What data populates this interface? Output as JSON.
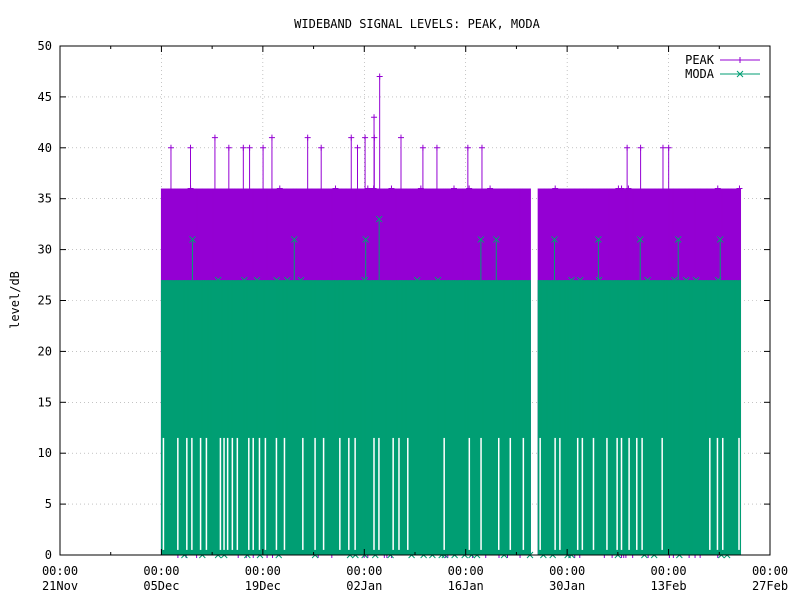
{
  "chart_data": {
    "type": "line",
    "title": "WIDEBAND SIGNAL LEVELS: PEAK, MODA",
    "xlabel": "",
    "ylabel": "level/dB",
    "ylim": [
      0,
      50
    ],
    "yticks": [
      0,
      5,
      10,
      15,
      20,
      25,
      30,
      35,
      40,
      45,
      50
    ],
    "xlim": [
      "2022-11-21",
      "2023-02-27"
    ],
    "xticks": [
      {
        "date": "2022-11-21",
        "time": "00:00",
        "day": "21Nov"
      },
      {
        "date": "2022-12-05",
        "time": "00:00",
        "day": "05Dec"
      },
      {
        "date": "2022-12-19",
        "time": "00:00",
        "day": "19Dec"
      },
      {
        "date": "2023-01-02",
        "time": "00:00",
        "day": "02Jan"
      },
      {
        "date": "2023-01-16",
        "time": "00:00",
        "day": "16Jan"
      },
      {
        "date": "2023-01-30",
        "time": "00:00",
        "day": "30Jan"
      },
      {
        "date": "2023-02-13",
        "time": "00:00",
        "day": "13Feb"
      },
      {
        "date": "2023-02-27",
        "time": "00:00",
        "day": "27Feb"
      }
    ],
    "grid": true,
    "legend_position": "top-right",
    "series": [
      {
        "name": "PEAK",
        "color": "#9400d3",
        "marker": "plus",
        "band_typical": [
          0,
          36
        ],
        "band_range": [
          0,
          47
        ],
        "spikes": [
          {
            "date": "2022-12-06",
            "value": 40
          },
          {
            "date": "2022-12-09",
            "value": 40
          },
          {
            "date": "2022-12-12",
            "value": 41
          },
          {
            "date": "2022-12-14",
            "value": 40
          },
          {
            "date": "2022-12-16",
            "value": 40
          },
          {
            "date": "2022-12-17",
            "value": 40
          },
          {
            "date": "2022-12-19",
            "value": 40
          },
          {
            "date": "2022-12-20",
            "value": 41
          },
          {
            "date": "2022-12-25",
            "value": 41
          },
          {
            "date": "2022-12-27",
            "value": 40
          },
          {
            "date": "2022-12-31",
            "value": 41
          },
          {
            "date": "2023-01-01",
            "value": 40
          },
          {
            "date": "2023-01-02",
            "value": 41
          },
          {
            "date": "2023-01-03",
            "value": 43
          },
          {
            "date": "2023-01-03",
            "value": 41
          },
          {
            "date": "2023-01-04",
            "value": 47
          },
          {
            "date": "2023-01-07",
            "value": 41
          },
          {
            "date": "2023-01-10",
            "value": 40
          },
          {
            "date": "2023-01-12",
            "value": 40
          },
          {
            "date": "2023-01-16",
            "value": 40
          },
          {
            "date": "2023-01-18",
            "value": 40
          },
          {
            "date": "2023-02-07",
            "value": 40
          },
          {
            "date": "2023-02-09",
            "value": 40
          },
          {
            "date": "2023-02-12",
            "value": 40
          },
          {
            "date": "2023-02-13",
            "value": 40
          }
        ]
      },
      {
        "name": "MODA",
        "color": "#009e73",
        "marker": "cross",
        "band_typical": [
          0,
          27
        ],
        "band_range": [
          0,
          33
        ],
        "spikes": [
          {
            "date": "2022-12-09",
            "value": 31
          },
          {
            "date": "2022-12-23",
            "value": 31
          },
          {
            "date": "2023-01-02",
            "value": 31
          },
          {
            "date": "2023-01-04",
            "value": 33
          },
          {
            "date": "2023-01-18",
            "value": 31
          },
          {
            "date": "2023-01-20",
            "value": 31
          },
          {
            "date": "2023-01-28",
            "value": 31
          },
          {
            "date": "2023-02-03",
            "value": 31
          },
          {
            "date": "2023-02-09",
            "value": 31
          },
          {
            "date": "2023-02-14",
            "value": 31
          },
          {
            "date": "2023-02-20",
            "value": 31
          }
        ]
      }
    ],
    "data_periods": [
      {
        "start": "2022-12-05",
        "end": "2023-01-25"
      },
      {
        "start": "2023-01-26",
        "end": "2023-02-23"
      }
    ]
  }
}
